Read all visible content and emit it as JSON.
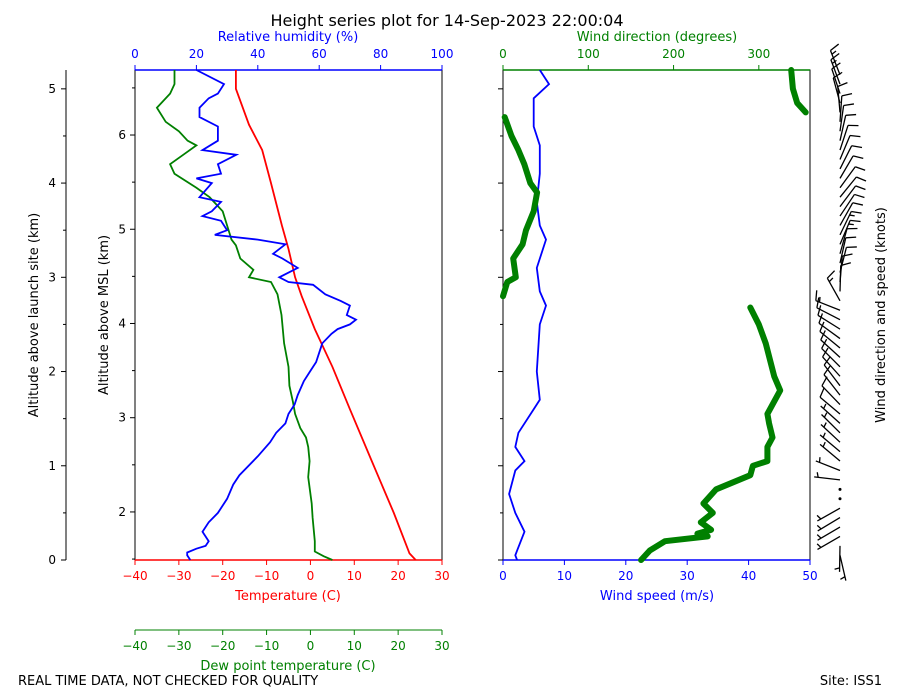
{
  "title": "Height series plot for 14-Sep-2023 22:00:04",
  "footer_left": "REAL TIME DATA, NOT CHECKED FOR QUALITY",
  "footer_right": "Site: ISS1",
  "colors": {
    "temp": "#ff0000",
    "dew": "#008000",
    "rh": "#0000ff",
    "wspd": "#0000ff",
    "wdir": "#008000",
    "barb": "#000000"
  },
  "chart_data": [
    {
      "type": "line",
      "panel": "thermo",
      "xlabel_temp": "Temperature (C)",
      "xlabel_dew": "Dew point temperature (C)",
      "xlabel_rh": "Relative humidity (%)",
      "ylabel_agl": "Altitude above launch site (km)",
      "ylabel_msl": "Altitude above MSL (km)",
      "temp_ticks": [
        "−40",
        "−30",
        "−20",
        "−10",
        "0",
        "10",
        "20",
        "30"
      ],
      "dew_ticks": [
        "−40",
        "−30",
        "−20",
        "−10",
        "0",
        "10",
        "20",
        "30"
      ],
      "rh_ticks": [
        "0",
        "20",
        "40",
        "60",
        "80",
        "100"
      ],
      "agl_ticks": [
        "0",
        "1",
        "2",
        "3",
        "4",
        "5"
      ],
      "msl_ticks": [
        "2",
        "3",
        "4",
        "5",
        "6"
      ],
      "xlim_temp": [
        -40,
        30
      ],
      "xlim_rh": [
        0,
        100
      ],
      "ylim_agl_km": [
        0,
        5.2
      ],
      "series": [
        {
          "name": "Temperature",
          "points": [
            [
              24,
              0
            ],
            [
              22.6,
              0.07
            ],
            [
              19,
              0.5
            ],
            [
              14,
              1.05
            ],
            [
              9,
              1.6
            ],
            [
              5,
              2.05
            ],
            [
              1,
              2.45
            ],
            [
              -2,
              2.8
            ],
            [
              -3.5,
              3.0
            ],
            [
              -5,
              3.3
            ],
            [
              -6.5,
              3.55
            ],
            [
              -9,
              4.0
            ],
            [
              -11,
              4.35
            ],
            [
              -14,
              4.62
            ],
            [
              -17,
              5.0
            ],
            [
              -17,
              5.2
            ]
          ]
        },
        {
          "name": "Dew point",
          "points": [
            [
              5,
              0
            ],
            [
              3,
              0.04
            ],
            [
              1,
              0.09
            ],
            [
              1,
              0.2
            ],
            [
              0.5,
              0.45
            ],
            [
              0.3,
              0.6
            ],
            [
              -0.5,
              0.88
            ],
            [
              -0.2,
              1.05
            ],
            [
              -0.5,
              1.2
            ],
            [
              -1,
              1.3
            ],
            [
              -2.3,
              1.4
            ],
            [
              -3.5,
              1.55
            ],
            [
              -4,
              1.68
            ],
            [
              -4.8,
              1.85
            ],
            [
              -5,
              2.05
            ],
            [
              -6,
              2.3
            ],
            [
              -6.6,
              2.6
            ],
            [
              -7.5,
              2.82
            ],
            [
              -9,
              2.95
            ],
            [
              -14,
              3.0
            ],
            [
              -13,
              3.08
            ],
            [
              -16,
              3.2
            ],
            [
              -17,
              3.34
            ],
            [
              -18,
              3.4
            ],
            [
              -20,
              3.7
            ],
            [
              -23,
              3.85
            ],
            [
              -26,
              3.95
            ],
            [
              -31,
              4.1
            ],
            [
              -32,
              4.2
            ],
            [
              -29,
              4.3
            ],
            [
              -26,
              4.4
            ],
            [
              -28,
              4.45
            ],
            [
              -30,
              4.55
            ],
            [
              -33,
              4.65
            ],
            [
              -35,
              4.8
            ],
            [
              -32,
              4.95
            ],
            [
              -31,
              5.05
            ],
            [
              -31,
              5.2
            ]
          ]
        },
        {
          "name": "Relative humidity",
          "points": [
            [
              18,
              0
            ],
            [
              17,
              0.05
            ],
            [
              17,
              0.08
            ],
            [
              20,
              0.12
            ],
            [
              23,
              0.15
            ],
            [
              24,
              0.2
            ],
            [
              22,
              0.3
            ],
            [
              24,
              0.4
            ],
            [
              27,
              0.5
            ],
            [
              30,
              0.65
            ],
            [
              32,
              0.8
            ],
            [
              34,
              0.9
            ],
            [
              40,
              1.1
            ],
            [
              44,
              1.25
            ],
            [
              46,
              1.35
            ],
            [
              49,
              1.45
            ],
            [
              50,
              1.55
            ],
            [
              52,
              1.65
            ],
            [
              53,
              1.75
            ],
            [
              55,
              1.9
            ],
            [
              57,
              2.0
            ],
            [
              59,
              2.1
            ],
            [
              60,
              2.2
            ],
            [
              61,
              2.3
            ],
            [
              64,
              2.4
            ],
            [
              66,
              2.45
            ],
            [
              70,
              2.5
            ],
            [
              72,
              2.55
            ],
            [
              69,
              2.6
            ],
            [
              70,
              2.7
            ],
            [
              67,
              2.75
            ],
            [
              62,
              2.82
            ],
            [
              58,
              2.92
            ],
            [
              50,
              2.95
            ],
            [
              47,
              3.0
            ],
            [
              53,
              3.1
            ],
            [
              48,
              3.2
            ],
            [
              45,
              3.25
            ],
            [
              49,
              3.35
            ],
            [
              40,
              3.4
            ],
            [
              26,
              3.45
            ],
            [
              30,
              3.5
            ],
            [
              28,
              3.6
            ],
            [
              22,
              3.65
            ],
            [
              25,
              3.7
            ],
            [
              28,
              3.8
            ],
            [
              21,
              3.85
            ],
            [
              25,
              4.0
            ],
            [
              20,
              4.05
            ],
            [
              28,
              4.1
            ],
            [
              27,
              4.2
            ],
            [
              33,
              4.3
            ],
            [
              22,
              4.35
            ],
            [
              27,
              4.45
            ],
            [
              27,
              4.6
            ],
            [
              21,
              4.7
            ],
            [
              21,
              4.8
            ],
            [
              24,
              4.9
            ],
            [
              27,
              4.95
            ],
            [
              29,
              5.05
            ],
            [
              20,
              5.2
            ]
          ]
        }
      ]
    },
    {
      "type": "line",
      "panel": "wind",
      "xlabel_wspd": "Wind speed (m/s)",
      "xlabel_wdir": "Wind direction (degrees)",
      "barb_label": "Wind direction and speed (knots)",
      "wspd_ticks": [
        "0",
        "10",
        "20",
        "30",
        "40",
        "50"
      ],
      "wdir_ticks": [
        "0",
        "100",
        "200",
        "300"
      ],
      "xlim_wspd": [
        0,
        50
      ],
      "xlim_wdir": [
        0,
        360
      ],
      "ylim_agl_km": [
        0,
        5.2
      ],
      "series": [
        {
          "name": "Wind speed",
          "points": [
            [
              2.3,
              0
            ],
            [
              2,
              0.05
            ],
            [
              2.3,
              0.1
            ],
            [
              3.5,
              0.3
            ],
            [
              2,
              0.5
            ],
            [
              1,
              0.7
            ],
            [
              2,
              0.95
            ],
            [
              3.5,
              1.05
            ],
            [
              2,
              1.2
            ],
            [
              2.5,
              1.35
            ],
            [
              5,
              1.6
            ],
            [
              6,
              1.7
            ],
            [
              5.5,
              2.0
            ],
            [
              6,
              2.5
            ],
            [
              7,
              2.7
            ],
            [
              6,
              2.85
            ],
            [
              5.5,
              3.1
            ],
            [
              7,
              3.4
            ],
            [
              6,
              3.55
            ],
            [
              5.5,
              3.8
            ],
            [
              6,
              4.1
            ],
            [
              6,
              4.4
            ],
            [
              5,
              4.6
            ],
            [
              5,
              4.9
            ],
            [
              7.5,
              5.05
            ],
            [
              6,
              5.2
            ]
          ]
        },
        {
          "name": "Wind direction",
          "points": [
            [
              162,
              0
            ],
            [
              172,
              0.1
            ],
            [
              190,
              0.2
            ],
            [
              240,
              0.25
            ],
            [
              228,
              0.28
            ],
            [
              244,
              0.32
            ],
            [
              232,
              0.4
            ],
            [
              246,
              0.5
            ],
            [
              235,
              0.6
            ],
            [
              250,
              0.75
            ],
            [
              290,
              0.9
            ],
            [
              293,
              1.0
            ],
            [
              310,
              1.05
            ],
            [
              310,
              1.2
            ],
            [
              316,
              1.3
            ],
            [
              312,
              1.45
            ],
            [
              310,
              1.55
            ],
            [
              325,
              1.8
            ],
            [
              318,
              1.95
            ],
            [
              308,
              2.3
            ],
            [
              300,
              2.5
            ],
            [
              290,
              2.68
            ],
            [
              0,
              2.8
            ],
            [
              5,
              2.95
            ],
            [
              15,
              3.0
            ],
            [
              12,
              3.2
            ],
            [
              23,
              3.35
            ],
            [
              27,
              3.5
            ],
            [
              36,
              3.7
            ],
            [
              40,
              3.9
            ],
            [
              32,
              4.0
            ],
            [
              25,
              4.2
            ],
            [
              18,
              4.35
            ],
            [
              10,
              4.5
            ],
            [
              2,
              4.7
            ],
            [
              355,
              4.75
            ],
            [
              345,
              4.85
            ],
            [
              340,
              5.0
            ],
            [
              338,
              5.2
            ]
          ]
        }
      ]
    }
  ]
}
